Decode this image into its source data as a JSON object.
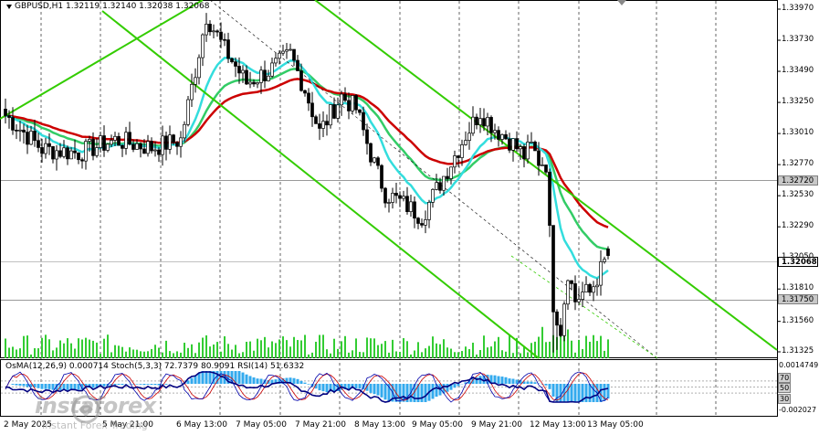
{
  "window": {
    "title": "GBPUSD,H1  1.32119 1.32140 1.32038 1.32068"
  },
  "indicator_title": "OsMA(12,26,9) 0.000714  Stoch(5,3,3) 72.7379 80.9091  RSI(14) 51.6332",
  "price_axis": [
    "1.33970",
    "1.33730",
    "1.33490",
    "1.33250",
    "1.33010",
    "1.32770",
    "1.32530",
    "1.32290",
    "1.32050",
    "1.31810",
    "1.31560",
    "1.31325"
  ],
  "price_tags": {
    "level_upper": "1.32720",
    "current": "1.32068",
    "level_lower": "1.31750"
  },
  "indicator_axis": {
    "top": "0.0014749",
    "bottom": "-0.002027",
    "levels": [
      "70",
      "50",
      "30"
    ]
  },
  "time_axis": [
    "2 May 2025",
    "5 May 21:00",
    "6 May 13:00",
    "7 May 05:00",
    "7 May 21:00",
    "8 May 13:00",
    "9 May 05:00",
    "9 May 21:00",
    "12 May 13:00",
    "13 May 05:00"
  ],
  "watermark": {
    "brand": "instaforex",
    "sub": "Instant Forex Trading"
  },
  "colors": {
    "bull": "#000000",
    "bear": "#000000",
    "ema_red": "#cc0000",
    "ema_green": "#33cc66",
    "ema_cyan": "#33dddd",
    "channel": "#33cc00",
    "volume": "#33cc33",
    "osma": "#33aaee",
    "stoch_main": "#0000aa",
    "stoch_signal": "#cc0000"
  },
  "chart_data": {
    "type": "candlestick",
    "symbol": "GBPUSD",
    "timeframe": "H1",
    "last": {
      "open": 1.32119,
      "high": 1.3214,
      "low": 1.32038,
      "close": 1.32068
    },
    "ylim": [
      1.31325,
      1.3397
    ]
  }
}
